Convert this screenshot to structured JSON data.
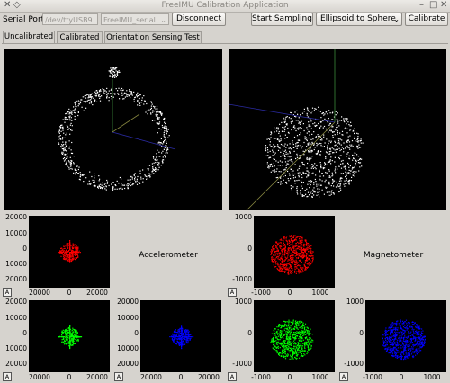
{
  "window": {
    "title": "FreeIMU Calibration Application"
  },
  "toolbar": {
    "serial_port_label": "Serial Port:",
    "serial_port_value": "/dev/ttyUSB9",
    "device_value": "FreeIMU_serial",
    "disconnect_label": "Disconnect",
    "start_sampling_label": "Start Sampling",
    "fit_method_value": "Ellipsoid to Sphere",
    "calibrate_label": "Calibrate"
  },
  "tabs": [
    {
      "label": "Uncalibrated",
      "active": true
    },
    {
      "label": "Calibrated",
      "active": false
    },
    {
      "label": "Orientation Sensing Test",
      "active": false
    }
  ],
  "sensors": {
    "accelerometer_label": "Accelerometer",
    "magnetometer_label": "Magnetometer"
  },
  "plots": {
    "acc_xy": {
      "yticks": [
        "20000",
        "10000",
        "0",
        "10000",
        "20000"
      ],
      "xticks": [
        "20000",
        "0",
        "20000"
      ],
      "color": "#ff0000"
    },
    "acc_xz": {
      "yticks": [
        "20000",
        "10000",
        "0",
        "10000",
        "20000"
      ],
      "xticks": [
        "20000",
        "0",
        "20000"
      ],
      "color": "#00ff00"
    },
    "acc_yz": {
      "yticks": [
        "20000",
        "10000",
        "0",
        "10000",
        "20000"
      ],
      "xticks": [
        "20000",
        "0",
        "20000"
      ],
      "color": "#0000ff"
    },
    "mag_xy": {
      "yticks": [
        "1000",
        "0",
        "-1000"
      ],
      "xticks": [
        "-1000",
        "0",
        "1000"
      ],
      "color": "#ff0000"
    },
    "mag_xz": {
      "yticks": [
        "1000",
        "0",
        "-1000"
      ],
      "xticks": [
        "-1000",
        "0",
        "1000"
      ],
      "color": "#00ff00"
    },
    "mag_yz": {
      "yticks": [
        "1000",
        "0",
        "-1000"
      ],
      "xticks": [
        "-1000",
        "0",
        "1000"
      ],
      "color": "#0000ff"
    },
    "autoscale_label": "A"
  },
  "icons": {
    "app_icon": "x-icon",
    "window_controls": "window-control-icons"
  }
}
